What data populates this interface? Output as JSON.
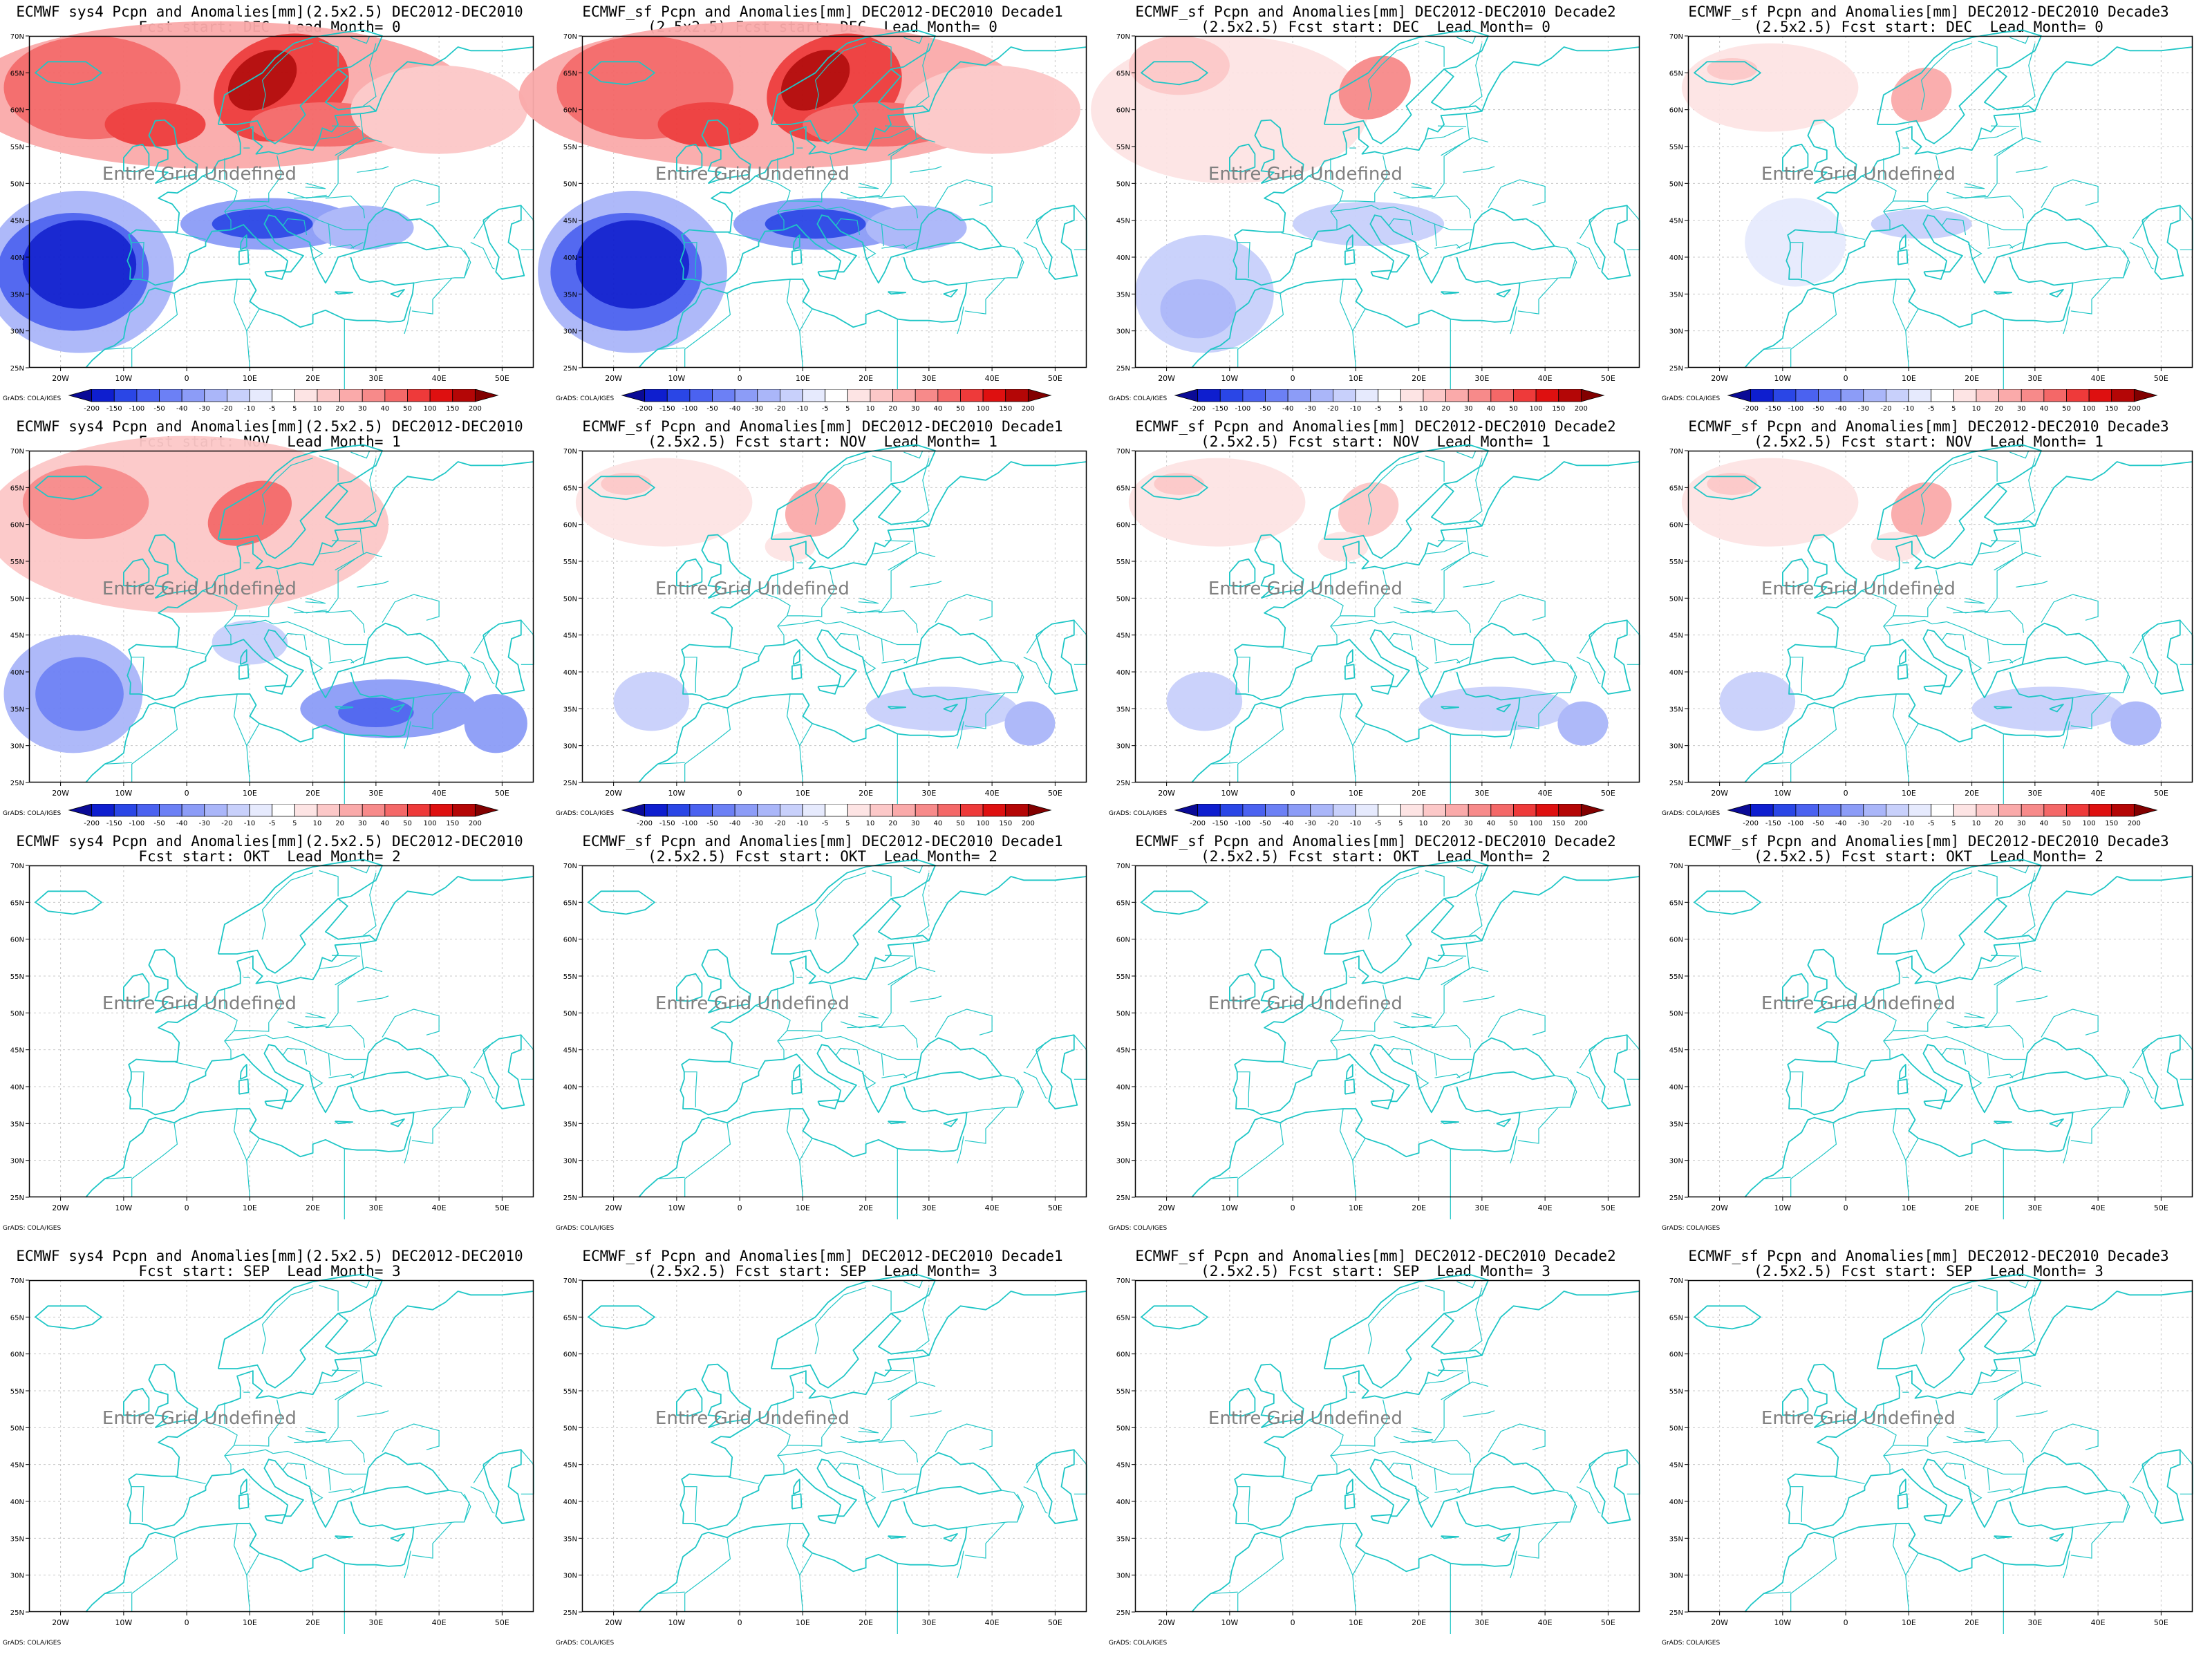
{
  "axes": {
    "lon_labels": [
      "20W",
      "10W",
      "0",
      "10E",
      "20E",
      "30E",
      "40E",
      "50E"
    ],
    "lat_labels": [
      "70N",
      "65N",
      "60N",
      "55N",
      "50N",
      "45N",
      "40N",
      "35N",
      "30N",
      "25N"
    ]
  },
  "legend": {
    "levels": [
      "-200",
      "-150",
      "-100",
      "-50",
      "-40",
      "-30",
      "-20",
      "-10",
      "-5",
      "5",
      "10",
      "20",
      "30",
      "40",
      "50",
      "100",
      "150",
      "200"
    ],
    "colors": [
      "#0a0a96",
      "#0e1ecf",
      "#2a46e6",
      "#4b62f0",
      "#6c80f5",
      "#8c9cf7",
      "#aab6f9",
      "#c8d0fb",
      "#e6eafd",
      "#ffffff",
      "#fde4e4",
      "#fcc8c8",
      "#faaaaa",
      "#f78a8a",
      "#f46868",
      "#ee3a3a",
      "#de1010",
      "#b40606",
      "#820000"
    ]
  },
  "credit": "GrADS: COLA/IGES",
  "undefined_text": "Entire Grid Undefined",
  "colors": {
    "coast": "#1fc6c6",
    "grid": "#c8c8c8",
    "blue_scale": [
      "#0a0a96",
      "#0e1ecf",
      "#2a46e6",
      "#4b62f0",
      "#6c80f5",
      "#8c9cf7",
      "#aab6f9",
      "#c8d0fb",
      "#e6eafd"
    ],
    "red_scale": [
      "#fde4e4",
      "#fcc8c8",
      "#faaaaa",
      "#f78a8a",
      "#f46868",
      "#ee3a3a",
      "#de1010",
      "#b40606",
      "#820000"
    ]
  },
  "panels": [
    {
      "title1": "ECMWF sys4 Pcpn and Anomalies[mm](2.5x2.5) DEC2012-DEC2010",
      "title2": "Fcst start: DEC  Lead Month= 0",
      "intensity": 3,
      "legend": true
    },
    {
      "title1": "ECMWF_sf Pcpn and Anomalies[mm] DEC2012-DEC2010 Decade1",
      "title2": "(2.5x2.5) Fcst start: DEC  Lead Month= 0",
      "intensity": 3,
      "legend": true
    },
    {
      "title1": "ECMWF_sf Pcpn and Anomalies[mm] DEC2012-DEC2010 Decade2",
      "title2": "(2.5x2.5) Fcst start: DEC  Lead Month= 0",
      "intensity": 2,
      "legend": true
    },
    {
      "title1": "ECMWF_sf Pcpn and Anomalies[mm] DEC2012-DEC2010 Decade3",
      "title2": "(2.5x2.5) Fcst start: DEC  Lead Month= 0",
      "intensity": 1,
      "legend": true
    },
    {
      "title1": "ECMWF sys4 Pcpn and Anomalies[mm](2.5x2.5) DEC2012-DEC2010",
      "title2": "Fcst start: NOV  Lead Month= 1",
      "intensity": 2,
      "legend": true
    },
    {
      "title1": "ECMWF_sf Pcpn and Anomalies[mm] DEC2012-DEC2010 Decade1",
      "title2": "(2.5x2.5) Fcst start: NOV  Lead Month= 1",
      "intensity": 1,
      "legend": true
    },
    {
      "title1": "ECMWF_sf Pcpn and Anomalies[mm] DEC2012-DEC2010 Decade2",
      "title2": "(2.5x2.5) Fcst start: NOV  Lead Month= 1",
      "intensity": 1,
      "legend": true
    },
    {
      "title1": "ECMWF_sf Pcpn and Anomalies[mm] DEC2012-DEC2010 Decade3",
      "title2": "(2.5x2.5) Fcst start: NOV  Lead Month= 1",
      "intensity": 1,
      "legend": true
    },
    {
      "title1": "ECMWF sys4 Pcpn and Anomalies[mm](2.5x2.5) DEC2012-DEC2010",
      "title2": "Fcst start: OKT  Lead Month= 2",
      "intensity": 0,
      "legend": false
    },
    {
      "title1": "ECMWF_sf Pcpn and Anomalies[mm] DEC2012-DEC2010 Decade1",
      "title2": "(2.5x2.5) Fcst start: OKT  Lead Month= 2",
      "intensity": 0,
      "legend": false
    },
    {
      "title1": "ECMWF_sf Pcpn and Anomalies[mm] DEC2012-DEC2010 Decade2",
      "title2": "(2.5x2.5) Fcst start: OKT  Lead Month= 2",
      "intensity": 0,
      "legend": false
    },
    {
      "title1": "ECMWF_sf Pcpn and Anomalies[mm] DEC2012-DEC2010 Decade3",
      "title2": "(2.5x2.5) Fcst start: OKT  Lead Month= 2",
      "intensity": 0,
      "legend": false
    },
    {
      "title1": "ECMWF sys4 Pcpn and Anomalies[mm](2.5x2.5) DEC2012-DEC2010",
      "title2": "Fcst start: SEP  Lead Month= 3",
      "intensity": 0,
      "legend": false
    },
    {
      "title1": "ECMWF_sf Pcpn and Anomalies[mm] DEC2012-DEC2010 Decade1",
      "title2": "(2.5x2.5) Fcst start: SEP  Lead Month= 3",
      "intensity": 0,
      "legend": false
    },
    {
      "title1": "ECMWF_sf Pcpn and Anomalies[mm] DEC2012-DEC2010 Decade2",
      "title2": "(2.5x2.5) Fcst start: SEP  Lead Month= 3",
      "intensity": 0,
      "legend": false
    },
    {
      "title1": "ECMWF_sf Pcpn and Anomalies[mm] DEC2012-DEC2010 Decade3",
      "title2": "(2.5x2.5) Fcst start: SEP  Lead Month= 3",
      "intensity": 0,
      "legend": false
    }
  ]
}
